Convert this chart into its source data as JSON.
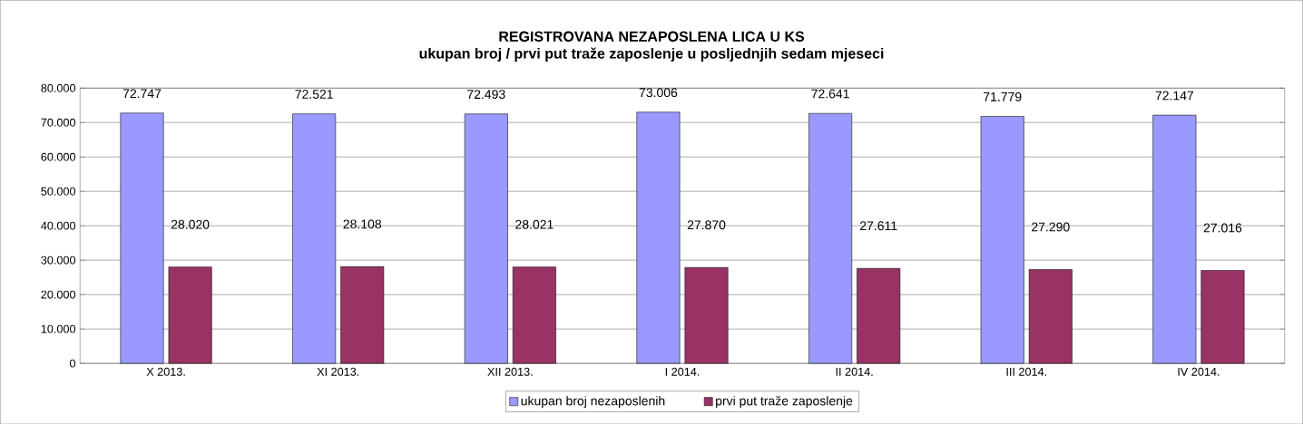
{
  "chart_data": {
    "type": "bar",
    "title": "REGISTROVANA NEZAPOSLENA LICA U KS",
    "subtitle": "ukupan broj / prvi put traže zaposlenje u posljednjih sedam mjeseci",
    "categories": [
      "X 2013.",
      "XI 2013.",
      "XII 2013.",
      "I 2014.",
      "II 2014.",
      "III 2014.",
      "IV 2014."
    ],
    "series": [
      {
        "name": "ukupan broj nezaposlenih",
        "color": "#9999ff",
        "values": [
          72747,
          72521,
          72493,
          73006,
          72641,
          71779,
          72147
        ],
        "value_labels": [
          "72.747",
          "72.521",
          "72.493",
          "73.006",
          "72.641",
          "71.779",
          "72.147"
        ]
      },
      {
        "name": "prvi put traže zaposlenje",
        "color": "#993366",
        "values": [
          28020,
          28108,
          28021,
          27870,
          27611,
          27290,
          27016
        ],
        "value_labels": [
          "28.020",
          "28.108",
          "28.021",
          "27.870",
          "27.611",
          "27.290",
          "27.016"
        ]
      }
    ],
    "ylim": [
      0,
      80000
    ],
    "yticks": [
      {
        "value": 0,
        "label": "0"
      },
      {
        "value": 10000,
        "label": "10.000"
      },
      {
        "value": 20000,
        "label": "20.000"
      },
      {
        "value": 30000,
        "label": "30.000"
      },
      {
        "value": 40000,
        "label": "40.000"
      },
      {
        "value": 50000,
        "label": "50.000"
      },
      {
        "value": 60000,
        "label": "60.000"
      },
      {
        "value": 70000,
        "label": "70.000"
      },
      {
        "value": 80000,
        "label": "80.000"
      }
    ],
    "grid": "y",
    "legend": "bottom"
  }
}
